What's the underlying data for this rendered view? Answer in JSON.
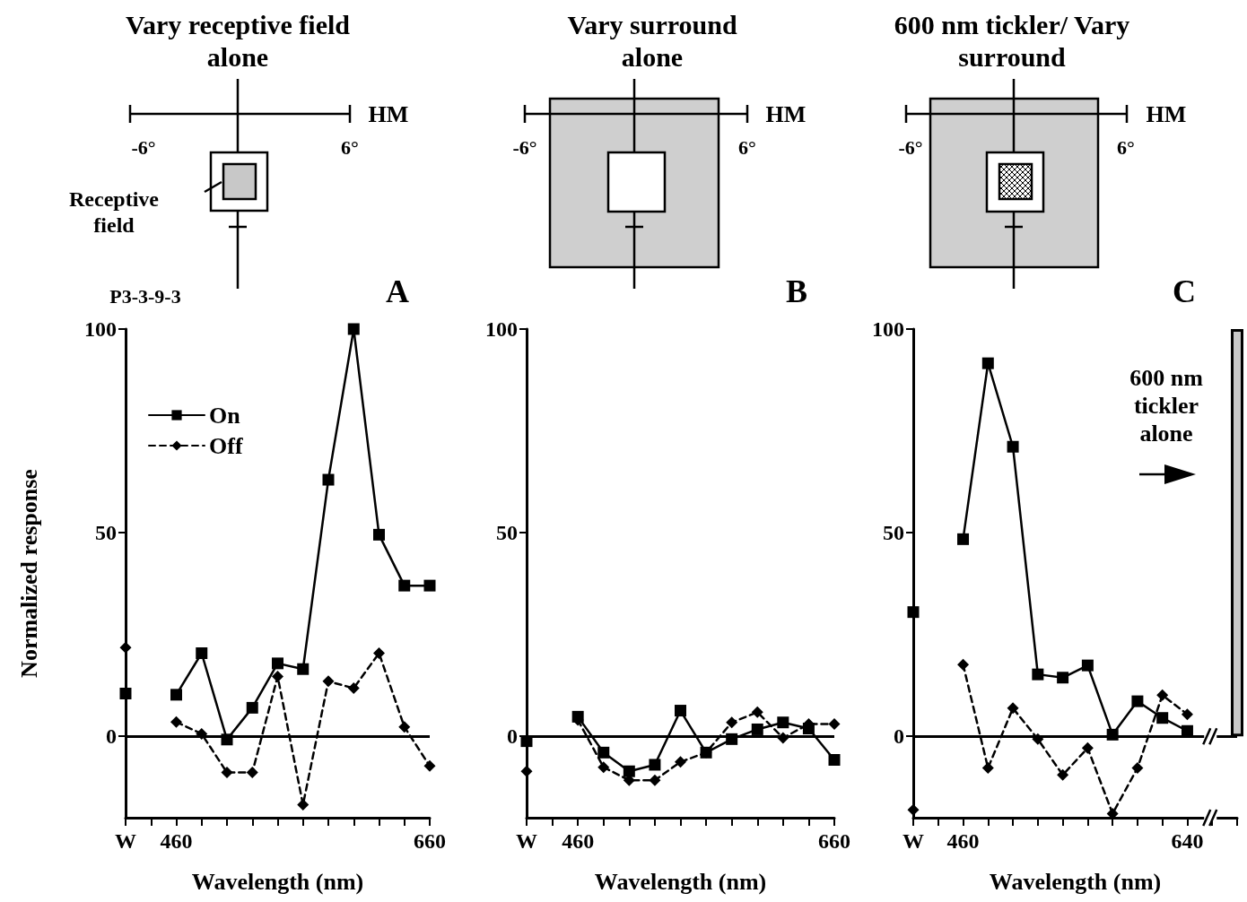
{
  "chart_data": [
    {
      "type": "line",
      "title": "Vary receptive field alone",
      "xlabel": "Wavelength (nm)",
      "ylabel": "Normalized response",
      "annotations": [
        "HM",
        "-6°",
        "6°",
        "Receptive field",
        "P3-3-9-3",
        "A"
      ],
      "categories": [
        "W",
        null,
        "460",
        null,
        null,
        null,
        null,
        null,
        null,
        null,
        null,
        null,
        "660"
      ],
      "series": [
        {
          "name": "On",
          "color": "#000000",
          "marker": "square",
          "line_style": "solid",
          "values": [
            10.5,
            null,
            10.2,
            20.4,
            -0.8,
            7.0,
            17.9,
            16.5,
            63,
            100,
            49.5,
            37,
            37
          ]
        },
        {
          "name": "Off",
          "color": "#000000",
          "marker": "diamond",
          "line_style": "dashed",
          "values": [
            21.8,
            null,
            3.5,
            0.6,
            -8.9,
            -8.9,
            14.7,
            -16.8,
            13.5,
            11.8,
            20.4,
            2.3,
            -7.3
          ]
        }
      ],
      "ylim": [
        -20,
        100
      ],
      "yticks": [
        0,
        50,
        100
      ],
      "ref_lines": [
        {
          "axis": "y",
          "value": 0
        }
      ],
      "legend": "top left"
    },
    {
      "type": "line",
      "title": "Vary surround alone",
      "xlabel": "Wavelength (nm)",
      "annotations": [
        "HM",
        "-6°",
        "6°",
        "B"
      ],
      "categories": [
        "W",
        null,
        "460",
        null,
        null,
        null,
        null,
        null,
        null,
        null,
        null,
        null,
        "660"
      ],
      "series": [
        {
          "color": "#000000",
          "marker": "square",
          "line_style": "solid",
          "values": [
            -1.2,
            null,
            4.8,
            -4.0,
            -8.6,
            -7.0,
            6.3,
            -4.0,
            -0.7,
            1.7,
            3.4,
            1.9,
            -5.8
          ]
        },
        {
          "color": "#000000",
          "marker": "diamond",
          "line_style": "dashed",
          "values": [
            -8.6,
            null,
            4.0,
            -7.6,
            -10.8,
            -10.8,
            -6.3,
            -4.0,
            3.4,
            5.9,
            -0.4,
            3.0,
            3.0
          ]
        }
      ],
      "ylim": [
        -20,
        100
      ],
      "yticks": [
        0,
        50,
        100
      ],
      "ref_lines": [
        {
          "axis": "y",
          "value": 0
        }
      ]
    },
    {
      "type": "line",
      "title": "600 nm tickler/ Vary surround",
      "xlabel": "Wavelength (nm)",
      "annotations": [
        "HM",
        "-6°",
        "6°",
        "C",
        "600 nm tickler alone"
      ],
      "categories": [
        "W",
        null,
        "460",
        null,
        null,
        null,
        null,
        null,
        null,
        null,
        null,
        "640",
        null,
        null
      ],
      "series": [
        {
          "color": "#000000",
          "marker": "square",
          "line_style": "solid",
          "values": [
            30.5,
            null,
            48.4,
            91.6,
            71.1,
            15.2,
            14.4,
            17.4,
            0.4,
            8.6,
            4.5,
            1.3,
            null,
            null
          ]
        },
        {
          "color": "#000000",
          "marker": "diamond",
          "line_style": "dashed",
          "values": [
            -18.1,
            null,
            17.6,
            -7.8,
            6.9,
            -0.7,
            -9.5,
            -2.9,
            -19.0,
            -7.8,
            10.1,
            5.4,
            null,
            null
          ]
        },
        {
          "type": "bar",
          "color": "#c8c8c8",
          "values": [
            null,
            null,
            null,
            null,
            null,
            null,
            null,
            null,
            null,
            null,
            null,
            null,
            null,
            100
          ]
        }
      ],
      "ylim": [
        -20,
        100
      ],
      "yticks": [
        0,
        50,
        100
      ],
      "ref_lines": [
        {
          "axis": "y",
          "value": 0
        }
      ]
    }
  ]
}
